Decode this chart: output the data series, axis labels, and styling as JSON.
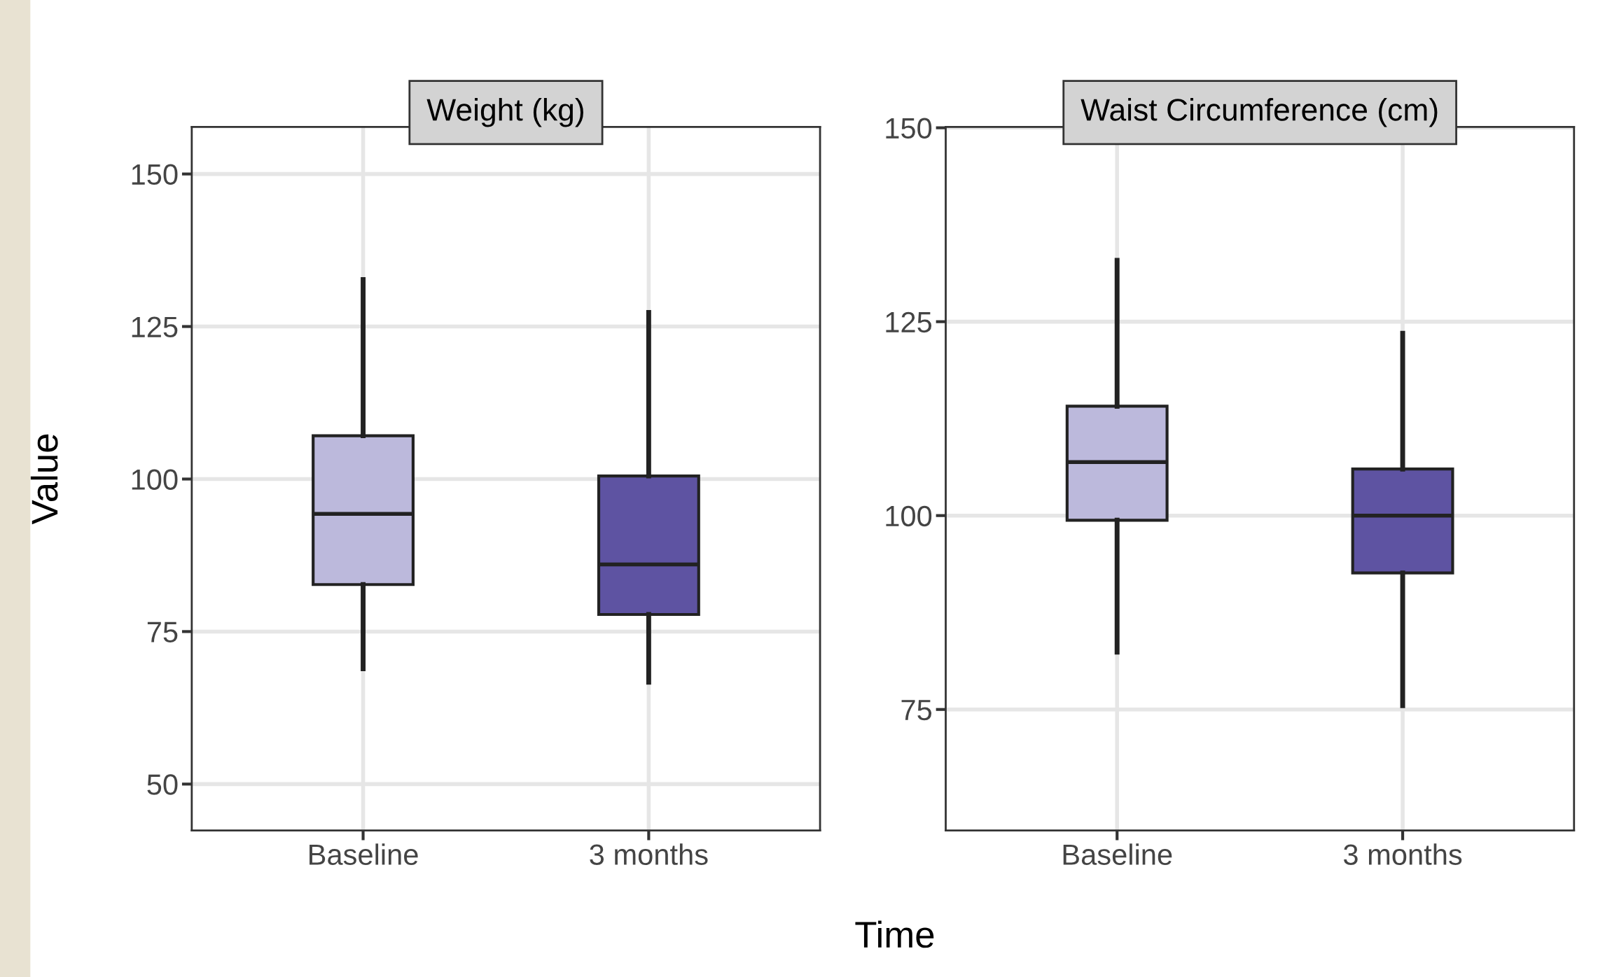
{
  "chart_data": [
    {
      "type": "box",
      "title": "Weight (kg)",
      "ylabel": "Value",
      "xlabel": "Time",
      "categories": [
        "Baseline",
        "3 months"
      ],
      "colors": [
        "#bcb9dc",
        "#5e53a2"
      ],
      "ylim": [
        42.4,
        157.7
      ],
      "yticks": [
        50,
        75,
        100,
        125,
        150
      ],
      "grid": true,
      "boxes": [
        {
          "low": 68.9,
          "q1": 82.7,
          "median": 94.3,
          "q3": 107.1,
          "high": 132.7
        },
        {
          "low": 66.7,
          "q1": 77.8,
          "median": 86,
          "q3": 100.5,
          "high": 127.3
        }
      ]
    },
    {
      "type": "box",
      "title": "Waist Circumference (cm)",
      "categories": [
        "Baseline",
        "3 months"
      ],
      "colors": [
        "#bcb9dc",
        "#5e53a2"
      ],
      "ylim": [
        59.4,
        150.1
      ],
      "yticks": [
        75,
        100,
        125,
        150
      ],
      "grid": true,
      "boxes": [
        {
          "low": 82.4,
          "q1": 99.4,
          "median": 106.9,
          "q3": 114.1,
          "high": 132.9
        },
        {
          "low": 75.5,
          "q1": 92.6,
          "median": 100,
          "q3": 106,
          "high": 123.5
        }
      ]
    }
  ]
}
